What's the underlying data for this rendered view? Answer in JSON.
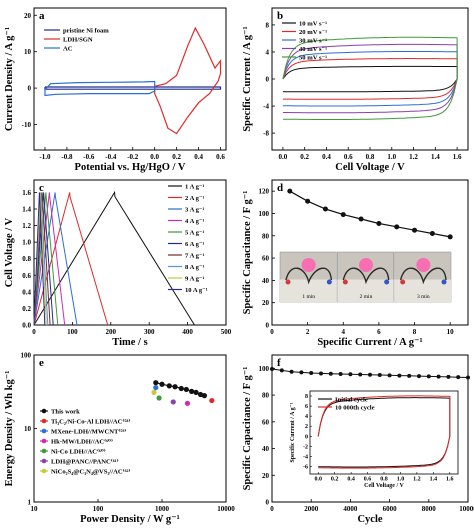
{
  "chart_data": [
    {
      "panel": "a",
      "type": "line",
      "xlabel": "Potential vs. Hg/HgO / V",
      "ylabel": "Current Density / A g⁻¹",
      "xlim": [
        -1.1,
        0.65
      ],
      "ylim": [
        -17,
        22
      ],
      "xticks": [
        "-1.0",
        "-0.8",
        "-0.6",
        "-0.4",
        "-0.2",
        "0.0",
        "0.2",
        "0.4",
        "0.6"
      ],
      "yticks": [
        "-10",
        "0",
        "10",
        "20"
      ],
      "legend_position": "top-left",
      "series": [
        {
          "name": "pristine Ni foam",
          "color": "#1f2d8a",
          "x": [
            -1.0,
            0.6,
            0.6,
            -1.0,
            -1.0
          ],
          "y": [
            0.3,
            0.3,
            -0.3,
            -0.3,
            0.3
          ]
        },
        {
          "name": "LDH/SGN",
          "color": "#e02a2a",
          "x": [
            0.0,
            0.1,
            0.2,
            0.3,
            0.37,
            0.45,
            0.55,
            0.6,
            0.6,
            0.58,
            0.5,
            0.4,
            0.3,
            0.2,
            0.12,
            0.05,
            0.0,
            0.0
          ],
          "y": [
            0.5,
            1.2,
            3.5,
            11.5,
            16.5,
            12.0,
            5.5,
            7.5,
            4.0,
            2.0,
            -1.5,
            -4.0,
            -8.0,
            -12.5,
            -11.0,
            -5.0,
            -1.5,
            0.5
          ]
        },
        {
          "name": "AC",
          "color": "#2b6fd6",
          "x": [
            -1.0,
            -0.95,
            -0.7,
            -0.4,
            -0.1,
            0.0,
            0.0,
            -0.05,
            -0.3,
            -0.6,
            -0.9,
            -1.0,
            -1.0
          ],
          "y": [
            -0.5,
            1.2,
            1.5,
            1.6,
            1.7,
            1.8,
            -0.8,
            -1.5,
            -1.5,
            -1.5,
            -1.7,
            -2.0,
            -0.5
          ]
        }
      ]
    },
    {
      "panel": "b",
      "type": "line",
      "xlabel": "Cell Voltage / V",
      "ylabel": "Specific Current / A g⁻¹",
      "xlim": [
        -0.1,
        1.7
      ],
      "ylim": [
        -10.5,
        10.5
      ],
      "xticks": [
        "0.0",
        "0.2",
        "0.4",
        "0.6",
        "0.8",
        "1.0",
        "1.2",
        "1.4",
        "1.6"
      ],
      "yticks": [
        "-8",
        "-4",
        "0",
        "4",
        "8"
      ],
      "legend_position": "top-left",
      "series": [
        {
          "name": "10 mV s⁻¹",
          "color": "#111111",
          "a": 1.6,
          "b": -1.7
        },
        {
          "name": "20 mV s⁻¹",
          "color": "#e02a2a",
          "a": 2.6,
          "b": -2.7
        },
        {
          "name": "30 mV s⁻¹",
          "color": "#2b6fd6",
          "a": 3.5,
          "b": -3.6
        },
        {
          "name": "40 mV s⁻¹",
          "color": "#8b3fb0",
          "a": 4.4,
          "b": -4.5
        },
        {
          "name": "50 mV s⁻¹",
          "color": "#3f9a3a",
          "a": 5.3,
          "b": -5.4
        }
      ]
    },
    {
      "panel": "c",
      "type": "line",
      "xlabel": "Time / s",
      "ylabel": "Cell Voltage / V",
      "xlim": [
        0,
        500
      ],
      "ylim": [
        0,
        1.75
      ],
      "xticks": [
        "0",
        "100",
        "200",
        "300",
        "400",
        "500"
      ],
      "yticks": [
        "0.0",
        "0.2",
        "0.4",
        "0.6",
        "0.8",
        "1.0",
        "1.2",
        "1.4",
        "1.6"
      ],
      "legend_position": "top-right",
      "series": [
        {
          "name": "1 A g⁻¹",
          "color": "#111111",
          "peak_t": 210,
          "end_t": 418
        },
        {
          "name": "2 A g⁻¹",
          "color": "#e02a2a",
          "peak_t": 93,
          "end_t": 192
        },
        {
          "name": "3 A g⁻¹",
          "color": "#2b6fd6",
          "peak_t": 55,
          "end_t": 112
        },
        {
          "name": "4 A g⁻¹",
          "color": "#d02ab0",
          "peak_t": 40,
          "end_t": 80
        },
        {
          "name": "5 A g⁻¹",
          "color": "#3f9a3a",
          "peak_t": 31,
          "end_t": 62
        },
        {
          "name": "6 A g⁻¹",
          "color": "#1f2d8a",
          "peak_t": 25,
          "end_t": 50
        },
        {
          "name": "7 A g⁻¹",
          "color": "#7a2a2a",
          "peak_t": 21,
          "end_t": 42
        },
        {
          "name": "8 A g⁻¹",
          "color": "#5b8fd6",
          "peak_t": 18,
          "end_t": 36
        },
        {
          "name": "9 A g⁻¹",
          "color": "#c8c83a",
          "peak_t": 16,
          "end_t": 32
        },
        {
          "name": "10 A g⁻¹",
          "color": "#2b2b8a",
          "peak_t": 14,
          "end_t": 28
        }
      ],
      "v_max": 1.6
    },
    {
      "panel": "d",
      "type": "line",
      "xlabel": "Specific Current / A g⁻¹",
      "ylabel": "Specific Capacitance / F g⁻¹",
      "xlim": [
        0,
        11
      ],
      "ylim": [
        0,
        130
      ],
      "xticks": [
        "0",
        "2",
        "4",
        "6",
        "8",
        "10"
      ],
      "yticks": [
        "0",
        "20",
        "40",
        "60",
        "80",
        "100",
        "120"
      ],
      "series": [
        {
          "name": "",
          "color": "#111111",
          "x": [
            1,
            2,
            3,
            4,
            5,
            6,
            7,
            8,
            9,
            10
          ],
          "y": [
            120,
            111,
            104,
            99,
            95,
            91,
            88,
            85,
            82,
            79
          ]
        }
      ],
      "inset_captions": [
        "1 min",
        "2 min",
        "3 min"
      ]
    },
    {
      "panel": "e",
      "type": "scatter",
      "xlabel": "Power Density / W g⁻¹",
      "ylabel": "Energy Density / Wh kg⁻¹",
      "xscale": "log",
      "yscale": "log",
      "xlim": [
        10,
        10000
      ],
      "ylim": [
        1,
        100
      ],
      "xticks": [
        "10",
        "100",
        "1000",
        "10000"
      ],
      "yticks": [
        "1",
        "10",
        "100"
      ],
      "series": [
        {
          "name": "This work",
          "color": "#111111",
          "line": true,
          "x": [
            800,
            1000,
            1300,
            1600,
            2000,
            2400,
            2900,
            3400,
            4000,
            4600
          ],
          "y": [
            42,
            40,
            38,
            37,
            35,
            34,
            32,
            31,
            29,
            28
          ]
        },
        {
          "name": "Ti₃C₂/Ni-Co-Al LDH//AC⁽⁵⁸⁾",
          "color": "#e02a2a",
          "x": [
            6000
          ],
          "y": [
            24
          ]
        },
        {
          "name": "MXene-LDH//MWCNT⁽⁵⁹⁾",
          "color": "#2b6fd6",
          "x": [
            800
          ],
          "y": [
            36
          ]
        },
        {
          "name": "Hk-MW/LDH//AC⁽⁶⁰⁾",
          "color": "#d02ab0",
          "x": [
            2500
          ],
          "y": [
            22
          ]
        },
        {
          "name": "Ni-Co LDH//AC⁽⁶⁰⁾",
          "color": "#3f9a3a",
          "x": [
            900
          ],
          "y": [
            26
          ]
        },
        {
          "name": "LDH@PANC//PANC⁽⁶¹⁾",
          "color": "#8b3fb0",
          "x": [
            1500
          ],
          "y": [
            23
          ]
        },
        {
          "name": "NiCo₂S₄@C₃N₄@VS₂//AC⁽⁶²⁾",
          "color": "#c8c83a",
          "x": [
            750
          ],
          "y": [
            31
          ]
        }
      ]
    },
    {
      "panel": "f",
      "type": "line",
      "xlabel": "Cycle",
      "ylabel": "Specific Capacitance / F g⁻¹",
      "xlim": [
        0,
        10000
      ],
      "ylim": [
        0,
        110
      ],
      "xticks": [
        "0",
        "2000",
        "4000",
        "6000",
        "8000",
        "10000"
      ],
      "yticks": [
        "0",
        "20",
        "40",
        "60",
        "80",
        "100"
      ],
      "series": [
        {
          "name": "",
          "color": "#111111",
          "x": [
            0,
            500,
            1000,
            1500,
            2000,
            2500,
            3000,
            3500,
            4000,
            4500,
            5000,
            5500,
            6000,
            6500,
            7000,
            7500,
            8000,
            8500,
            9000,
            9500,
            10000
          ],
          "y": [
            99.5,
            98.5,
            97.5,
            97,
            96.5,
            96.2,
            96,
            95.8,
            95.6,
            95.4,
            95.2,
            95,
            94.8,
            94.6,
            94.4,
            94.2,
            94,
            93.8,
            93.6,
            93.4,
            93.2
          ]
        }
      ],
      "inset": {
        "xlabel": "Cell Voltage / V",
        "ylabel": "Specific Current / A g⁻¹",
        "xlim": [
          -0.1,
          1.7
        ],
        "ylim": [
          -7.5,
          9
        ],
        "xticks": [
          "0.0",
          "0.2",
          "0.4",
          "0.6",
          "0.8",
          "1.0",
          "1.2",
          "1.4",
          "1.6"
        ],
        "yticks": [
          "-6",
          "-4",
          "-2",
          "0",
          "2",
          "4",
          "6",
          "8"
        ],
        "series": [
          {
            "name": "Initial cycle",
            "color": "#111111",
            "a": 6.6,
            "b": -5.5
          },
          {
            "name": "10 000th cycle",
            "color": "#e02a2a",
            "a": 6.9,
            "b": -5.7
          }
        ]
      }
    }
  ]
}
